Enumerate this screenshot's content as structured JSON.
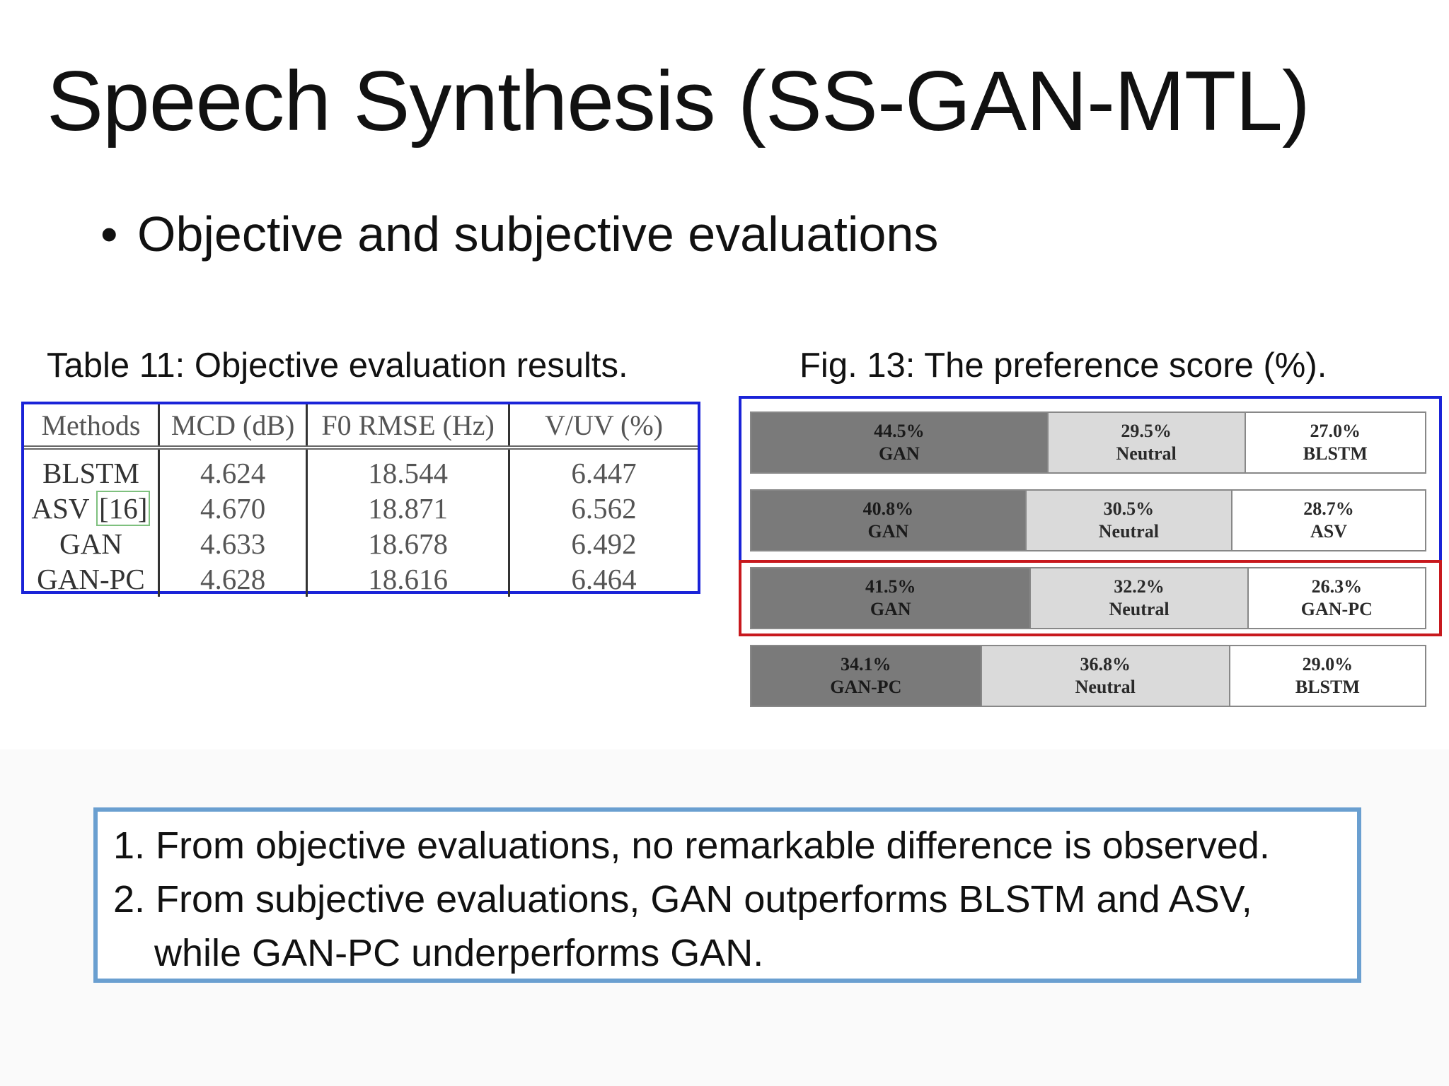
{
  "slide": {
    "title": "Speech Synthesis (SS-GAN-MTL)",
    "bullet": "Objective and subjective evaluations"
  },
  "table": {
    "caption": "Table 11: Objective evaluation results.",
    "headers": [
      "Methods",
      "MCD (dB)",
      "F0 RMSE (Hz)",
      "V/UV (%)"
    ],
    "rows": [
      {
        "method": "BLSTM",
        "ref": "",
        "mcd": "4.624",
        "f0": "18.544",
        "vuv": "6.447"
      },
      {
        "method": "ASV",
        "ref": "[16]",
        "mcd": "4.670",
        "f0": "18.871",
        "vuv": "6.562"
      },
      {
        "method": "GAN",
        "ref": "",
        "mcd": "4.633",
        "f0": "18.678",
        "vuv": "6.492"
      },
      {
        "method": "GAN-PC",
        "ref": "",
        "mcd": "4.628",
        "f0": "18.616",
        "vuv": "6.464"
      }
    ]
  },
  "figure": {
    "caption": "Fig. 13: The preference score (%)."
  },
  "chart_data": {
    "type": "bar",
    "orientation": "horizontal-stacked",
    "rows": [
      {
        "segments": [
          {
            "label": "GAN",
            "value": 44.5,
            "text": "44.5%"
          },
          {
            "label": "Neutral",
            "value": 29.5,
            "text": "29.5%"
          },
          {
            "label": "BLSTM",
            "value": 27.0,
            "text": "27.0%"
          }
        ]
      },
      {
        "segments": [
          {
            "label": "GAN",
            "value": 40.8,
            "text": "40.8%"
          },
          {
            "label": "Neutral",
            "value": 30.5,
            "text": "30.5%"
          },
          {
            "label": "ASV",
            "value": 28.7,
            "text": "28.7%"
          }
        ]
      },
      {
        "segments": [
          {
            "label": "GAN",
            "value": 41.5,
            "text": "41.5%"
          },
          {
            "label": "Neutral",
            "value": 32.2,
            "text": "32.2%"
          },
          {
            "label": "GAN-PC",
            "value": 26.3,
            "text": "26.3%"
          }
        ]
      },
      {
        "segments": [
          {
            "label": "GAN-PC",
            "value": 34.1,
            "text": "34.1%"
          },
          {
            "label": "Neutral",
            "value": 36.8,
            "text": "36.8%"
          },
          {
            "label": "BLSTM",
            "value": 29.0,
            "text": "29.0%"
          }
        ]
      }
    ],
    "colors": {
      "first": "#7a7a7a",
      "neutral": "#dadada",
      "last": "#ffffff",
      "highlight_blue": "#1a23d8",
      "highlight_red": "#c8191e"
    }
  },
  "conclusions": {
    "line1": "1. From objective evaluations, no remarkable difference is observed.",
    "line2": "2. From subjective evaluations, GAN outperforms BLSTM and ASV,",
    "line3": "while GAN-PC underperforms GAN."
  }
}
